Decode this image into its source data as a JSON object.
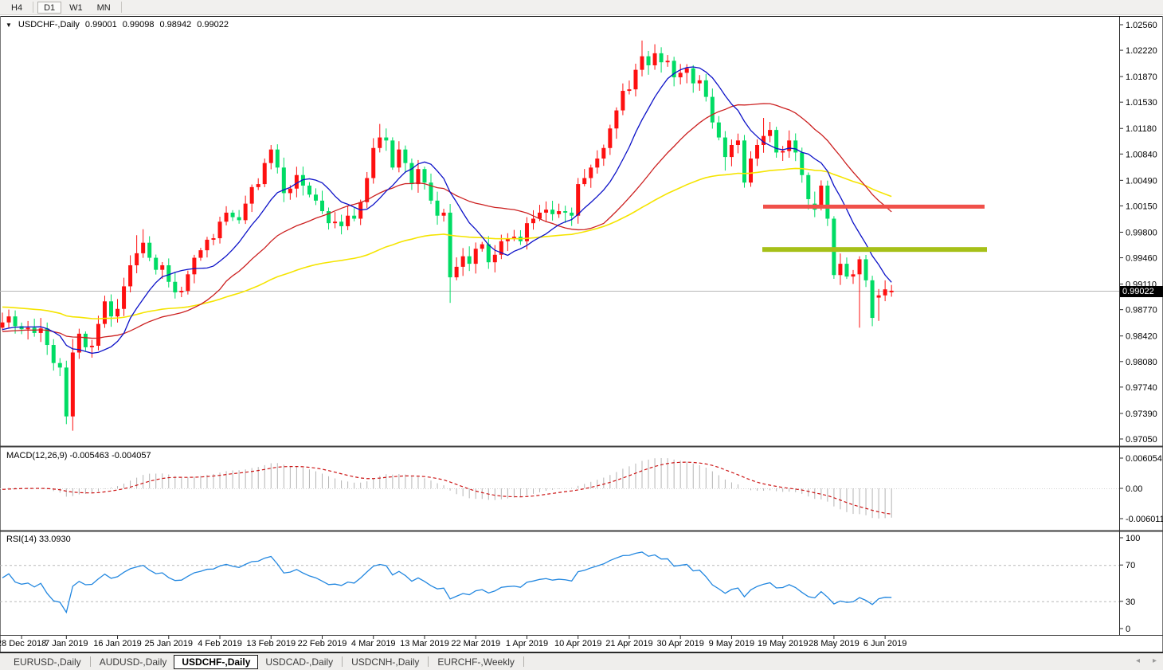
{
  "toolbar": {
    "buttons": [
      {
        "label": "H4",
        "active": false
      },
      {
        "label": "D1",
        "active": true
      },
      {
        "label": "W1",
        "active": false
      },
      {
        "label": "MN",
        "active": false
      }
    ]
  },
  "chart": {
    "title": {
      "symbol": "USDCHF-,Daily",
      "open": "0.99001",
      "high": "0.99098",
      "low": "0.98942",
      "close": "0.99022"
    },
    "price_axis": {
      "ticks": [
        "1.02560",
        "1.02220",
        "1.01870",
        "1.01530",
        "1.01180",
        "1.00840",
        "1.00490",
        "1.00150",
        "0.99800",
        "0.99460",
        "0.99110",
        "0.98770",
        "0.98420",
        "0.98080",
        "0.97740",
        "0.97390",
        "0.97050"
      ],
      "current_price": "0.99022"
    },
    "x_axis": {
      "labels": [
        {
          "text": "28 Dec 2018",
          "bar": 0
        },
        {
          "text": "7 Jan 2019",
          "bar": 7
        },
        {
          "text": "16 Jan 2019",
          "bar": 15
        },
        {
          "text": "25 Jan 2019",
          "bar": 23
        },
        {
          "text": "4 Feb 2019",
          "bar": 31
        },
        {
          "text": "13 Feb 2019",
          "bar": 39
        },
        {
          "text": "22 Feb 2019",
          "bar": 47
        },
        {
          "text": "4 Mar 2019",
          "bar": 55
        },
        {
          "text": "13 Mar 2019",
          "bar": 63
        },
        {
          "text": "22 Mar 2019",
          "bar": 71
        },
        {
          "text": "1 Apr 2019",
          "bar": 79
        },
        {
          "text": "10 Apr 2019",
          "bar": 87
        },
        {
          "text": "21 Apr 2019",
          "bar": 95
        },
        {
          "text": "30 Apr 2019",
          "bar": 103
        },
        {
          "text": "9 May 2019",
          "bar": 111
        },
        {
          "text": "19 May 2019",
          "bar": 119
        },
        {
          "text": "28 May 2019",
          "bar": 127
        },
        {
          "text": "6 Jun 2019",
          "bar": 135
        }
      ]
    },
    "levels": {
      "resistance": {
        "price": 1.0014,
        "color": "#f0504a",
        "thickness": 5
      },
      "support": {
        "price": 0.9957,
        "color": "#a6c018",
        "thickness": 6
      }
    },
    "colors": {
      "candle_up": "#fe1010",
      "candle_down": "#00dc64",
      "ma_fast": "#0d12c8",
      "ma_mid": "#cc2020",
      "ma_slow": "#f5e400",
      "current_line": "#b6b6b6"
    },
    "moving_averages": [
      {
        "period": 10,
        "type": "sma",
        "color": "#0d12c8"
      },
      {
        "period": 25,
        "type": "sma",
        "color": "#cc2020"
      },
      {
        "period": 80,
        "type": "ema",
        "color": "#f5e400"
      }
    ],
    "series": {
      "pre_closes": [
        0.9988,
        0.9982,
        0.9975,
        0.998,
        0.997,
        0.9962,
        0.9968,
        0.9955,
        0.9948,
        0.9952,
        0.9944,
        0.9936,
        0.994,
        0.993,
        0.9922,
        0.9928,
        0.9918,
        0.991,
        0.9915,
        0.9905,
        0.9898,
        0.9904,
        0.9895,
        0.9888,
        0.9893,
        0.9884,
        0.9878,
        0.9883,
        0.9875,
        0.987,
        0.9876,
        0.9868,
        0.9862,
        0.9867,
        0.9858,
        0.9852,
        0.9857,
        0.9862,
        0.9855,
        0.9848,
        0.9853,
        0.9858,
        0.985,
        0.9845,
        0.985,
        0.9856,
        0.9848,
        0.9842,
        0.9848,
        0.9853,
        0.9846,
        0.984,
        0.9845,
        0.9851,
        0.9844,
        0.9838,
        0.9843,
        0.9849,
        0.9842,
        0.9846,
        0.9852,
        0.9846,
        0.984,
        0.9845,
        0.985,
        0.9844,
        0.9848,
        0.9854,
        0.9848,
        0.9843,
        0.9848,
        0.9852,
        0.9846,
        0.985,
        0.9855,
        0.9849,
        0.9853,
        0.986,
        0.9868,
        0.9855
      ],
      "closes": [
        0.9851,
        0.9853,
        0.9846,
        0.9852,
        0.983,
        0.9806,
        0.98,
        0.9735,
        0.982,
        0.9845,
        0.9827,
        0.9829,
        0.9858,
        0.9888,
        0.9868,
        0.9878,
        0.9908,
        0.9936,
        0.9952,
        0.9966,
        0.9946,
        0.993,
        0.9936,
        0.9914,
        0.99,
        0.9902,
        0.9924,
        0.9946,
        0.9956,
        0.997,
        0.9972,
        0.9994,
        1.0006,
        1.0,
        0.9996,
        1.0018,
        1.004,
        1.0044,
        1.0072,
        1.009,
        1.0066,
        1.0032,
        1.0038,
        1.0056,
        1.0042,
        1.003,
        1.0022,
        1.0008,
        0.9992,
        0.9994,
        0.9988,
        1.0002,
        0.9998,
        1.002,
        1.0052,
        1.0092,
        1.0106,
        1.0102,
        1.0066,
        1.009,
        1.0072,
        1.0044,
        1.0064,
        1.0046,
        1.0022,
        1.0002,
        1.0006,
        0.992,
        0.9934,
        0.9948,
        0.9938,
        0.9958,
        0.9964,
        0.994,
        0.995,
        0.9968,
        0.9972,
        0.9974,
        0.9968,
        0.9992,
        0.9998,
        1.0006,
        1.001,
        1.0004,
        1.0008,
        1.0006,
        1.0002,
        1.0044,
        1.0052,
        1.0066,
        1.0078,
        1.0092,
        1.0118,
        1.0142,
        1.0168,
        1.017,
        1.0196,
        1.0214,
        1.0202,
        1.0218,
        1.0206,
        1.0208,
        1.0186,
        1.0192,
        1.0198,
        1.0178,
        1.0182,
        1.016,
        1.0126,
        1.0106,
        1.008,
        1.0096,
        1.0102,
        1.0046,
        1.0078,
        1.0096,
        1.0108,
        1.0116,
        1.0086,
        1.0088,
        1.0102,
        1.0086,
        1.0056,
        1.0024,
        1.0014,
        1.0042,
        0.9998,
        0.9923,
        0.9938,
        0.9921,
        0.9924,
        0.9944,
        0.9916,
        0.9866,
        0.9896,
        0.9904,
        0.99022
      ],
      "overrides": {
        "8": {
          "o": 0.9735,
          "h": 0.9838,
          "l": 0.9716,
          "c": 0.982
        },
        "18": {
          "h": 0.9976
        },
        "19": {
          "h": 0.9984
        },
        "39": {
          "h": 1.0096
        },
        "56": {
          "h": 1.0124
        },
        "57": {
          "h": 1.0118
        },
        "67": {
          "l": 0.9886
        },
        "97": {
          "h": 1.0235
        },
        "99": {
          "h": 1.023
        },
        "100": {
          "h": 1.0226
        },
        "110": {
          "l": 1.0062
        },
        "116": {
          "h": 1.0132
        },
        "124": {
          "o": 1.0018,
          "c": 1.001,
          "h": 1.0034,
          "l": 1.0
        },
        "127": {
          "l": 0.9918
        },
        "131": {
          "h": 0.9948,
          "l": 0.9853
        },
        "133": {
          "l": 0.9855
        },
        "134": {
          "o": 0.9893,
          "l": 0.9862
        },
        "136": {
          "o": 0.99001,
          "h": 0.99098,
          "l": 0.98942,
          "c": 0.99022
        }
      }
    }
  },
  "macd": {
    "label": "MACD(12,26,9) -0.005463 -0.004057",
    "params": {
      "fast": 12,
      "slow": 26,
      "signal": 9
    },
    "axis": [
      {
        "label": "0.006054",
        "value": 0.006054
      },
      {
        "label": "0.00",
        "value": 0
      },
      {
        "label": "-0.006011",
        "value": -0.006011
      }
    ],
    "colors": {
      "histogram": "#b4b4b4",
      "signal": "#cc1414"
    }
  },
  "rsi": {
    "label": "RSI(14) 33.0930",
    "period": 14,
    "axis": [
      {
        "label": "100",
        "value": 100
      },
      {
        "label": "70",
        "value": 70
      },
      {
        "label": "30",
        "value": 30
      },
      {
        "label": "0",
        "value": 0
      }
    ],
    "dashed_levels": [
      70,
      30
    ],
    "color": "#2287e0"
  },
  "tabs": {
    "items": [
      {
        "label": "EURUSD-,Daily",
        "active": false
      },
      {
        "label": "AUDUSD-,Daily",
        "active": false
      },
      {
        "label": "USDCHF-,Daily",
        "active": true
      },
      {
        "label": "USDCAD-,Daily",
        "active": false
      },
      {
        "label": "USDCNH-,Daily",
        "active": false
      },
      {
        "label": "EURCHF-,Weekly",
        "active": false
      }
    ],
    "scroll_left": "◂",
    "scroll_right": "▸"
  }
}
